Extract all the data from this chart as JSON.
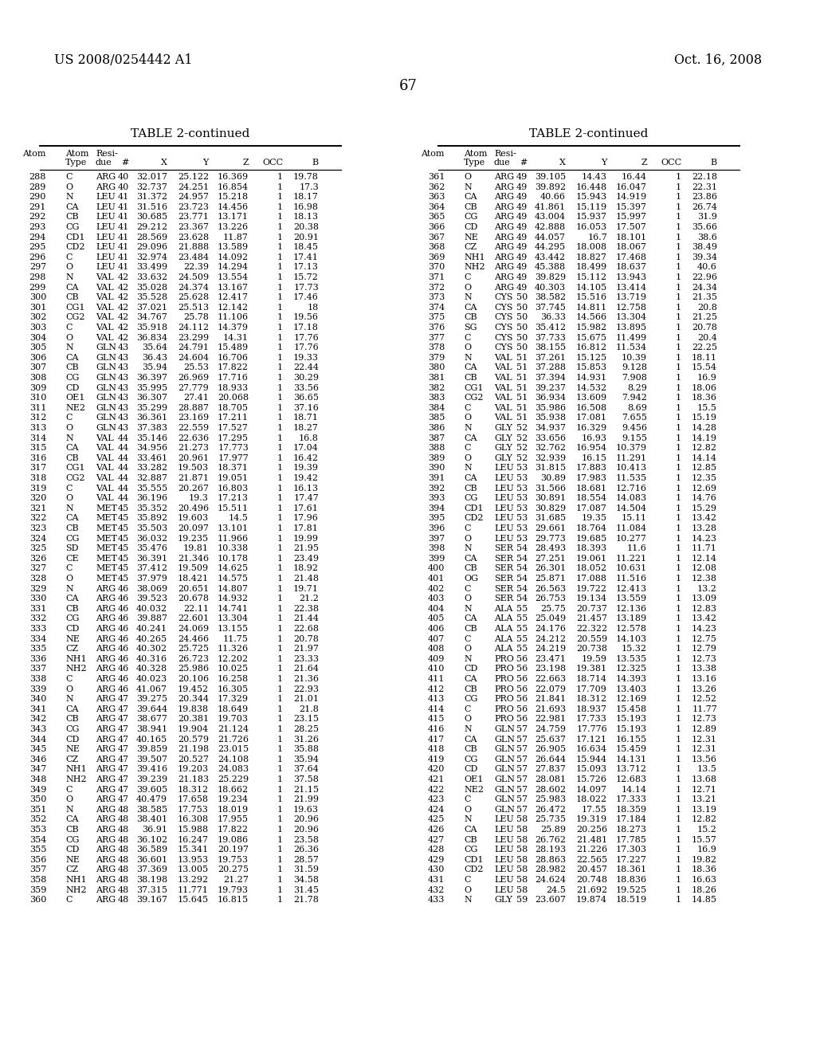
{
  "header_left": "US 2008/0254442 A1",
  "header_right": "Oct. 16, 2008",
  "page_number": "67",
  "table_title": "TABLE 2-continued",
  "left_table": [
    [
      "288",
      "C",
      "ARG",
      "40",
      "32.017",
      "25.122",
      "16.369",
      "1",
      "19.78"
    ],
    [
      "289",
      "O",
      "ARG",
      "40",
      "32.737",
      "24.251",
      "16.854",
      "1",
      "17.3"
    ],
    [
      "290",
      "N",
      "LEU",
      "41",
      "31.372",
      "24.957",
      "15.218",
      "1",
      "18.17"
    ],
    [
      "291",
      "CA",
      "LEU",
      "41",
      "31.516",
      "23.723",
      "14.456",
      "1",
      "16.98"
    ],
    [
      "292",
      "CB",
      "LEU",
      "41",
      "30.685",
      "23.771",
      "13.171",
      "1",
      "18.13"
    ],
    [
      "293",
      "CG",
      "LEU",
      "41",
      "29.212",
      "23.367",
      "13.226",
      "1",
      "20.38"
    ],
    [
      "294",
      "CD1",
      "LEU",
      "41",
      "28.569",
      "23.628",
      "11.87",
      "1",
      "20.91"
    ],
    [
      "295",
      "CD2",
      "LEU",
      "41",
      "29.096",
      "21.888",
      "13.589",
      "1",
      "18.45"
    ],
    [
      "296",
      "C",
      "LEU",
      "41",
      "32.974",
      "23.484",
      "14.092",
      "1",
      "17.41"
    ],
    [
      "297",
      "O",
      "LEU",
      "41",
      "33.499",
      "22.39",
      "14.294",
      "1",
      "17.13"
    ],
    [
      "298",
      "N",
      "VAL",
      "42",
      "33.632",
      "24.509",
      "13.554",
      "1",
      "15.72"
    ],
    [
      "299",
      "CA",
      "VAL",
      "42",
      "35.028",
      "24.374",
      "13.167",
      "1",
      "17.73"
    ],
    [
      "300",
      "CB",
      "VAL",
      "42",
      "35.528",
      "25.628",
      "12.417",
      "1",
      "17.46"
    ],
    [
      "301",
      "CG1",
      "VAL",
      "42",
      "37.021",
      "25.513",
      "12.142",
      "1",
      "18"
    ],
    [
      "302",
      "CG2",
      "VAL",
      "42",
      "34.767",
      "25.78",
      "11.106",
      "1",
      "19.56"
    ],
    [
      "303",
      "C",
      "VAL",
      "42",
      "35.918",
      "24.112",
      "14.379",
      "1",
      "17.18"
    ],
    [
      "304",
      "O",
      "VAL",
      "42",
      "36.834",
      "23.299",
      "14.31",
      "1",
      "17.76"
    ],
    [
      "305",
      "N",
      "GLN",
      "43",
      "35.64",
      "24.791",
      "15.489",
      "1",
      "17.76"
    ],
    [
      "306",
      "CA",
      "GLN",
      "43",
      "36.43",
      "24.604",
      "16.706",
      "1",
      "19.33"
    ],
    [
      "307",
      "CB",
      "GLN",
      "43",
      "35.94",
      "25.53",
      "17.822",
      "1",
      "22.44"
    ],
    [
      "308",
      "CG",
      "GLN",
      "43",
      "36.397",
      "26.969",
      "17.716",
      "1",
      "30.29"
    ],
    [
      "309",
      "CD",
      "GLN",
      "43",
      "35.995",
      "27.779",
      "18.933",
      "1",
      "33.56"
    ],
    [
      "310",
      "OE1",
      "GLN",
      "43",
      "36.307",
      "27.41",
      "20.068",
      "1",
      "36.65"
    ],
    [
      "311",
      "NE2",
      "GLN",
      "43",
      "35.299",
      "28.887",
      "18.705",
      "1",
      "37.16"
    ],
    [
      "312",
      "C",
      "GLN",
      "43",
      "36.361",
      "23.169",
      "17.211",
      "1",
      "18.71"
    ],
    [
      "313",
      "O",
      "GLN",
      "43",
      "37.383",
      "22.559",
      "17.527",
      "1",
      "18.27"
    ],
    [
      "314",
      "N",
      "VAL",
      "44",
      "35.146",
      "22.636",
      "17.295",
      "1",
      "16.8"
    ],
    [
      "315",
      "CA",
      "VAL",
      "44",
      "34.956",
      "21.273",
      "17.773",
      "1",
      "17.04"
    ],
    [
      "316",
      "CB",
      "VAL",
      "44",
      "33.461",
      "20.961",
      "17.977",
      "1",
      "16.42"
    ],
    [
      "317",
      "CG1",
      "VAL",
      "44",
      "33.282",
      "19.503",
      "18.371",
      "1",
      "19.39"
    ],
    [
      "318",
      "CG2",
      "VAL",
      "44",
      "32.887",
      "21.871",
      "19.051",
      "1",
      "19.42"
    ],
    [
      "319",
      "C",
      "VAL",
      "44",
      "35.555",
      "20.267",
      "16.803",
      "1",
      "16.13"
    ],
    [
      "320",
      "O",
      "VAL",
      "44",
      "36.196",
      "19.3",
      "17.213",
      "1",
      "17.47"
    ],
    [
      "321",
      "N",
      "MET",
      "45",
      "35.352",
      "20.496",
      "15.511",
      "1",
      "17.61"
    ],
    [
      "322",
      "CA",
      "MET",
      "45",
      "35.892",
      "19.603",
      "14.5",
      "1",
      "17.96"
    ],
    [
      "323",
      "CB",
      "MET",
      "45",
      "35.503",
      "20.097",
      "13.101",
      "1",
      "17.81"
    ],
    [
      "324",
      "CG",
      "MET",
      "45",
      "36.032",
      "19.235",
      "11.966",
      "1",
      "19.99"
    ],
    [
      "325",
      "SD",
      "MET",
      "45",
      "35.476",
      "19.81",
      "10.338",
      "1",
      "21.95"
    ],
    [
      "326",
      "CE",
      "MET",
      "45",
      "36.391",
      "21.346",
      "10.178",
      "1",
      "23.49"
    ],
    [
      "327",
      "C",
      "MET",
      "45",
      "37.412",
      "19.509",
      "14.625",
      "1",
      "18.92"
    ],
    [
      "328",
      "O",
      "MET",
      "45",
      "37.979",
      "18.421",
      "14.575",
      "1",
      "21.48"
    ],
    [
      "329",
      "N",
      "ARG",
      "46",
      "38.069",
      "20.651",
      "14.807",
      "1",
      "19.71"
    ],
    [
      "330",
      "CA",
      "ARG",
      "46",
      "39.523",
      "20.678",
      "14.932",
      "1",
      "21.2"
    ],
    [
      "331",
      "CB",
      "ARG",
      "46",
      "40.032",
      "22.11",
      "14.741",
      "1",
      "22.38"
    ],
    [
      "332",
      "CG",
      "ARG",
      "46",
      "39.887",
      "22.601",
      "13.304",
      "1",
      "21.44"
    ],
    [
      "333",
      "CD",
      "ARG",
      "46",
      "40.241",
      "24.069",
      "13.155",
      "1",
      "22.68"
    ],
    [
      "334",
      "NE",
      "ARG",
      "46",
      "40.265",
      "24.466",
      "11.75",
      "1",
      "20.78"
    ],
    [
      "335",
      "CZ",
      "ARG",
      "46",
      "40.302",
      "25.725",
      "11.326",
      "1",
      "21.97"
    ],
    [
      "336",
      "NH1",
      "ARG",
      "46",
      "40.316",
      "26.723",
      "12.202",
      "1",
      "23.33"
    ],
    [
      "337",
      "NH2",
      "ARG",
      "46",
      "40.328",
      "25.986",
      "10.025",
      "1",
      "21.64"
    ],
    [
      "338",
      "C",
      "ARG",
      "46",
      "40.023",
      "20.106",
      "16.258",
      "1",
      "21.36"
    ],
    [
      "339",
      "O",
      "ARG",
      "46",
      "41.067",
      "19.452",
      "16.305",
      "1",
      "22.93"
    ],
    [
      "340",
      "N",
      "ARG",
      "47",
      "39.275",
      "20.344",
      "17.329",
      "1",
      "21.01"
    ],
    [
      "341",
      "CA",
      "ARG",
      "47",
      "39.644",
      "19.838",
      "18.649",
      "1",
      "21.8"
    ],
    [
      "342",
      "CB",
      "ARG",
      "47",
      "38.677",
      "20.381",
      "19.703",
      "1",
      "23.15"
    ],
    [
      "343",
      "CG",
      "ARG",
      "47",
      "38.941",
      "19.904",
      "21.124",
      "1",
      "28.25"
    ],
    [
      "344",
      "CD",
      "ARG",
      "47",
      "40.165",
      "20.579",
      "21.726",
      "1",
      "31.26"
    ],
    [
      "345",
      "NE",
      "ARG",
      "47",
      "39.859",
      "21.198",
      "23.015",
      "1",
      "35.88"
    ],
    [
      "346",
      "CZ",
      "ARG",
      "47",
      "39.507",
      "20.527",
      "24.108",
      "1",
      "35.94"
    ],
    [
      "347",
      "NH1",
      "ARG",
      "47",
      "39.416",
      "19.203",
      "24.083",
      "1",
      "37.64"
    ],
    [
      "348",
      "NH2",
      "ARG",
      "47",
      "39.239",
      "21.183",
      "25.229",
      "1",
      "37.58"
    ],
    [
      "349",
      "C",
      "ARG",
      "47",
      "39.605",
      "18.312",
      "18.662",
      "1",
      "21.15"
    ],
    [
      "350",
      "O",
      "ARG",
      "47",
      "40.479",
      "17.658",
      "19.234",
      "1",
      "21.99"
    ],
    [
      "351",
      "N",
      "ARG",
      "48",
      "38.585",
      "17.753",
      "18.019",
      "1",
      "19.63"
    ],
    [
      "352",
      "CA",
      "ARG",
      "48",
      "38.401",
      "16.308",
      "17.955",
      "1",
      "20.96"
    ],
    [
      "353",
      "CB",
      "ARG",
      "48",
      "36.91",
      "15.988",
      "17.822",
      "1",
      "20.96"
    ],
    [
      "354",
      "CG",
      "ARG",
      "48",
      "36.102",
      "16.247",
      "19.086",
      "1",
      "23.58"
    ],
    [
      "355",
      "CD",
      "ARG",
      "48",
      "36.589",
      "15.341",
      "20.197",
      "1",
      "26.36"
    ],
    [
      "356",
      "NE",
      "ARG",
      "48",
      "36.601",
      "13.953",
      "19.753",
      "1",
      "28.57"
    ],
    [
      "357",
      "CZ",
      "ARG",
      "48",
      "37.369",
      "13.005",
      "20.275",
      "1",
      "31.59"
    ],
    [
      "358",
      "NH1",
      "ARG",
      "48",
      "38.198",
      "13.292",
      "21.27",
      "1",
      "34.58"
    ],
    [
      "359",
      "NH2",
      "ARG",
      "48",
      "37.315",
      "11.771",
      "19.793",
      "1",
      "31.45"
    ],
    [
      "360",
      "C",
      "ARG",
      "48",
      "39.167",
      "15.645",
      "16.815",
      "1",
      "21.78"
    ]
  ],
  "right_table": [
    [
      "361",
      "O",
      "ARG",
      "49",
      "39.105",
      "14.43",
      "16.44",
      "1",
      "22.18"
    ],
    [
      "362",
      "N",
      "ARG",
      "49",
      "39.892",
      "16.448",
      "16.047",
      "1",
      "22.31"
    ],
    [
      "363",
      "CA",
      "ARG",
      "49",
      "40.66",
      "15.943",
      "14.919",
      "1",
      "23.86"
    ],
    [
      "364",
      "CB",
      "ARG",
      "49",
      "41.861",
      "15.119",
      "15.397",
      "1",
      "26.74"
    ],
    [
      "365",
      "CG",
      "ARG",
      "49",
      "43.004",
      "15.937",
      "15.997",
      "1",
      "31.9"
    ],
    [
      "366",
      "CD",
      "ARG",
      "49",
      "42.888",
      "16.053",
      "17.507",
      "1",
      "35.66"
    ],
    [
      "367",
      "NE",
      "ARG",
      "49",
      "44.057",
      "16.7",
      "18.101",
      "1",
      "38.6"
    ],
    [
      "368",
      "CZ",
      "ARG",
      "49",
      "44.295",
      "18.008",
      "18.067",
      "1",
      "38.49"
    ],
    [
      "369",
      "NH1",
      "ARG",
      "49",
      "43.442",
      "18.827",
      "17.468",
      "1",
      "39.34"
    ],
    [
      "370",
      "NH2",
      "ARG",
      "49",
      "45.388",
      "18.499",
      "18.637",
      "1",
      "40.6"
    ],
    [
      "371",
      "C",
      "ARG",
      "49",
      "39.829",
      "15.112",
      "13.943",
      "1",
      "22.96"
    ],
    [
      "372",
      "O",
      "ARG",
      "49",
      "40.303",
      "14.105",
      "13.414",
      "1",
      "24.34"
    ],
    [
      "373",
      "N",
      "CYS",
      "50",
      "38.582",
      "15.516",
      "13.719",
      "1",
      "21.35"
    ],
    [
      "374",
      "CA",
      "CYS",
      "50",
      "37.745",
      "14.811",
      "12.758",
      "1",
      "20.8"
    ],
    [
      "375",
      "CB",
      "CYS",
      "50",
      "36.33",
      "14.566",
      "13.304",
      "1",
      "21.25"
    ],
    [
      "376",
      "SG",
      "CYS",
      "50",
      "35.412",
      "15.982",
      "13.895",
      "1",
      "20.78"
    ],
    [
      "377",
      "C",
      "CYS",
      "50",
      "37.733",
      "15.675",
      "11.499",
      "1",
      "20.4"
    ],
    [
      "378",
      "O",
      "CYS",
      "50",
      "38.155",
      "16.812",
      "11.534",
      "1",
      "22.25"
    ],
    [
      "379",
      "N",
      "VAL",
      "51",
      "37.261",
      "15.125",
      "10.39",
      "1",
      "18.11"
    ],
    [
      "380",
      "CA",
      "VAL",
      "51",
      "37.288",
      "15.853",
      "9.128",
      "1",
      "15.54"
    ],
    [
      "381",
      "CB",
      "VAL",
      "51",
      "37.394",
      "14.931",
      "7.908",
      "1",
      "16.9"
    ],
    [
      "382",
      "CG1",
      "VAL",
      "51",
      "39.237",
      "14.532",
      "8.29",
      "1",
      "18.06"
    ],
    [
      "383",
      "CG2",
      "VAL",
      "51",
      "36.934",
      "13.609",
      "7.942",
      "1",
      "18.36"
    ],
    [
      "384",
      "C",
      "VAL",
      "51",
      "35.986",
      "16.508",
      "8.69",
      "1",
      "15.5"
    ],
    [
      "385",
      "O",
      "VAL",
      "51",
      "35.938",
      "17.081",
      "7.655",
      "1",
      "15.19"
    ],
    [
      "386",
      "N",
      "GLY",
      "52",
      "34.937",
      "16.329",
      "9.456",
      "1",
      "14.28"
    ],
    [
      "387",
      "CA",
      "GLY",
      "52",
      "33.656",
      "16.93",
      "9.155",
      "1",
      "14.19"
    ],
    [
      "388",
      "C",
      "GLY",
      "52",
      "32.762",
      "16.954",
      "10.379",
      "1",
      "12.82"
    ],
    [
      "389",
      "O",
      "GLY",
      "52",
      "32.939",
      "16.15",
      "11.291",
      "1",
      "14.14"
    ],
    [
      "390",
      "N",
      "LEU",
      "53",
      "31.815",
      "17.883",
      "10.413",
      "1",
      "12.85"
    ],
    [
      "391",
      "CA",
      "LEU",
      "53",
      "30.89",
      "17.983",
      "11.535",
      "1",
      "12.35"
    ],
    [
      "392",
      "CB",
      "LEU",
      "53",
      "31.566",
      "18.681",
      "12.716",
      "1",
      "12.69"
    ],
    [
      "393",
      "CG",
      "LEU",
      "53",
      "30.891",
      "18.554",
      "14.083",
      "1",
      "14.76"
    ],
    [
      "394",
      "CD1",
      "LEU",
      "53",
      "30.829",
      "17.087",
      "14.504",
      "1",
      "15.29"
    ],
    [
      "395",
      "CD2",
      "LEU",
      "53",
      "31.685",
      "19.35",
      "15.11",
      "1",
      "13.42"
    ],
    [
      "396",
      "C",
      "LEU",
      "53",
      "29.661",
      "18.764",
      "11.084",
      "1",
      "13.28"
    ],
    [
      "397",
      "O",
      "LEU",
      "53",
      "29.773",
      "19.685",
      "10.277",
      "1",
      "14.23"
    ],
    [
      "398",
      "N",
      "SER",
      "54",
      "28.493",
      "18.393",
      "11.6",
      "1",
      "11.71"
    ],
    [
      "399",
      "CA",
      "SER",
      "54",
      "27.251",
      "19.061",
      "11.221",
      "1",
      "12.14"
    ],
    [
      "400",
      "CB",
      "SER",
      "54",
      "26.301",
      "18.052",
      "10.631",
      "1",
      "12.08"
    ],
    [
      "401",
      "OG",
      "SER",
      "54",
      "25.871",
      "17.088",
      "11.516",
      "1",
      "12.38"
    ],
    [
      "402",
      "C",
      "SER",
      "54",
      "26.563",
      "19.722",
      "12.413",
      "1",
      "13.2"
    ],
    [
      "403",
      "O",
      "SER",
      "54",
      "26.753",
      "19.134",
      "13.559",
      "1",
      "13.09"
    ],
    [
      "404",
      "N",
      "ALA",
      "55",
      "25.75",
      "20.737",
      "12.136",
      "1",
      "12.83"
    ],
    [
      "405",
      "CA",
      "ALA",
      "55",
      "25.049",
      "21.457",
      "13.189",
      "1",
      "13.42"
    ],
    [
      "406",
      "CB",
      "ALA",
      "55",
      "24.176",
      "22.322",
      "12.578",
      "1",
      "14.23"
    ],
    [
      "407",
      "C",
      "ALA",
      "55",
      "24.212",
      "20.559",
      "14.103",
      "1",
      "12.75"
    ],
    [
      "408",
      "O",
      "ALA",
      "55",
      "24.219",
      "20.738",
      "15.32",
      "1",
      "12.79"
    ],
    [
      "409",
      "N",
      "PRO",
      "56",
      "23.471",
      "19.59",
      "13.535",
      "1",
      "12.73"
    ],
    [
      "410",
      "CD",
      "PRO",
      "56",
      "23.198",
      "19.381",
      "12.325",
      "1",
      "13.38"
    ],
    [
      "411",
      "CA",
      "PRO",
      "56",
      "22.663",
      "18.714",
      "14.393",
      "1",
      "13.16"
    ],
    [
      "412",
      "CB",
      "PRO",
      "56",
      "22.079",
      "17.709",
      "13.403",
      "1",
      "13.26"
    ],
    [
      "413",
      "CG",
      "PRO",
      "56",
      "21.841",
      "18.312",
      "12.169",
      "1",
      "12.52"
    ],
    [
      "414",
      "C",
      "PRO",
      "56",
      "21.693",
      "18.937",
      "15.458",
      "1",
      "11.77"
    ],
    [
      "415",
      "O",
      "PRO",
      "56",
      "22.981",
      "17.733",
      "15.193",
      "1",
      "12.73"
    ],
    [
      "416",
      "N",
      "GLN",
      "57",
      "24.759",
      "17.776",
      "15.193",
      "1",
      "12.89"
    ],
    [
      "417",
      "CA",
      "GLN",
      "57",
      "25.637",
      "17.121",
      "16.155",
      "1",
      "12.31"
    ],
    [
      "418",
      "CB",
      "GLN",
      "57",
      "26.905",
      "16.634",
      "15.459",
      "1",
      "12.31"
    ],
    [
      "419",
      "CG",
      "GLN",
      "57",
      "26.644",
      "15.944",
      "14.131",
      "1",
      "13.56"
    ],
    [
      "420",
      "CD",
      "GLN",
      "57",
      "27.837",
      "15.093",
      "13.712",
      "1",
      "13.5"
    ],
    [
      "421",
      "OE1",
      "GLN",
      "57",
      "28.081",
      "15.726",
      "12.683",
      "1",
      "13.68"
    ],
    [
      "422",
      "NE2",
      "GLN",
      "57",
      "28.602",
      "14.097",
      "14.14",
      "1",
      "12.71"
    ],
    [
      "423",
      "C",
      "GLN",
      "57",
      "25.983",
      "18.022",
      "17.333",
      "1",
      "13.21"
    ],
    [
      "424",
      "O",
      "GLN",
      "57",
      "26.472",
      "17.55",
      "18.359",
      "1",
      "13.19"
    ],
    [
      "425",
      "N",
      "LEU",
      "58",
      "25.735",
      "19.319",
      "17.184",
      "1",
      "12.82"
    ],
    [
      "426",
      "CA",
      "LEU",
      "58",
      "25.89",
      "20.256",
      "18.273",
      "1",
      "15.2"
    ],
    [
      "427",
      "CB",
      "LEU",
      "58",
      "26.762",
      "21.481",
      "17.785",
      "1",
      "15.57"
    ],
    [
      "428",
      "CG",
      "LEU",
      "58",
      "28.193",
      "21.226",
      "17.303",
      "1",
      "16.9"
    ],
    [
      "429",
      "CD1",
      "LEU",
      "58",
      "28.863",
      "22.565",
      "17.227",
      "1",
      "19.82"
    ],
    [
      "430",
      "CD2",
      "LEU",
      "58",
      "28.982",
      "20.457",
      "18.361",
      "1",
      "18.36"
    ],
    [
      "431",
      "C",
      "LEU",
      "58",
      "24.624",
      "20.748",
      "18.836",
      "1",
      "16.63"
    ],
    [
      "432",
      "O",
      "LEU",
      "58",
      "24.5",
      "21.692",
      "19.525",
      "1",
      "18.26"
    ],
    [
      "433",
      "N",
      "GLY",
      "59",
      "23.607",
      "19.874",
      "18.519",
      "1",
      "14.85"
    ]
  ]
}
